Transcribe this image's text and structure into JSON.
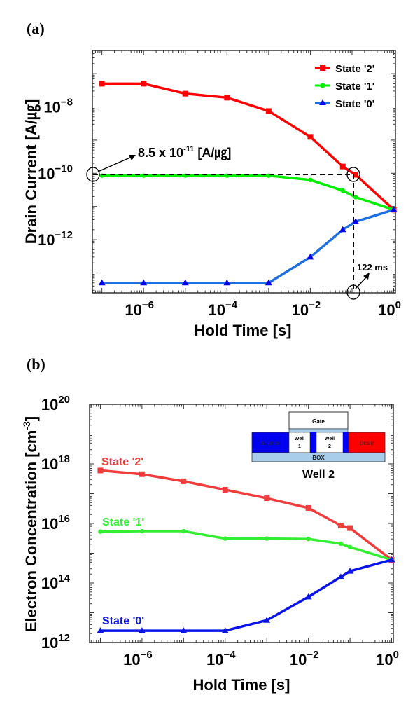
{
  "chart_data": [
    {
      "panel_label": "(a)",
      "type": "line",
      "xlabel": "Hold Time [s]",
      "ylabel": "Drain Current [A/㎍]",
      "x_scale": "log",
      "y_scale": "log",
      "xlim": [
        5.9e-08,
        1.1
      ],
      "ylim": [
        2.5e-14,
        5e-07
      ],
      "x_ticks": [
        {
          "base": "10",
          "exp": "−6",
          "value": 1e-06
        },
        {
          "base": "10",
          "exp": "−4",
          "value": 0.0001
        },
        {
          "base": "10",
          "exp": "−2",
          "value": 0.01
        },
        {
          "base": "10",
          "exp": "0",
          "value": 1
        }
      ],
      "y_ticks": [
        {
          "base": "10",
          "exp": "−8",
          "value": 1e-08
        },
        {
          "base": "10",
          "exp": "−10",
          "value": 1e-10
        },
        {
          "base": "10",
          "exp": "−12",
          "value": 1e-12
        }
      ],
      "legend": "top-right",
      "x": [
        1e-07,
        1e-06,
        1e-05,
        0.0001,
        0.001,
        0.01,
        0.06,
        0.122,
        1
      ],
      "series": [
        {
          "name": "State '2'",
          "color": "#ff0000",
          "marker": "square",
          "values": [
            5e-08,
            5e-08,
            2.5e-08,
            1.9e-08,
            7.5e-09,
            1.25e-09,
            1.6e-10,
            9e-11,
            8e-12
          ]
        },
        {
          "name": "State '1'",
          "color": "#00ee00",
          "marker": "circle",
          "values": [
            8.5e-11,
            8.5e-11,
            8.5e-11,
            8.5e-11,
            8.5e-11,
            6.3e-11,
            3e-11,
            1.9e-11,
            8e-12
          ]
        },
        {
          "name": "State '0'",
          "color": "#1e6fe0",
          "marker": "triangle",
          "values": [
            5e-14,
            5e-14,
            5e-14,
            5e-14,
            5e-14,
            3e-13,
            2e-12,
            3.5e-12,
            8e-12
          ]
        }
      ],
      "annotations": {
        "current_label_main": "8.5 x 10",
        "current_label_exp": "-11",
        "current_label_unit": " [A/㎍]",
        "current_value": 8.5e-11,
        "time_label": "122 ms",
        "time_value": 0.122
      }
    },
    {
      "panel_label": "(b)",
      "type": "line",
      "xlabel": "Hold Time [s]",
      "ylabel_main": "Electron Concentration [cm",
      "ylabel_exp": "-3",
      "ylabel_end": "]",
      "x_scale": "log",
      "y_scale": "log",
      "xlim": [
        5.5e-08,
        1.1
      ],
      "ylim": [
        1000000000000.0,
        1e+20
      ],
      "x_ticks": [
        {
          "base": "10",
          "exp": "−6",
          "value": 1e-06
        },
        {
          "base": "10",
          "exp": "−4",
          "value": 0.0001
        },
        {
          "base": "10",
          "exp": "−2",
          "value": 0.01
        },
        {
          "base": "10",
          "exp": "0",
          "value": 1
        }
      ],
      "y_ticks": [
        {
          "base": "10",
          "exp": "20",
          "value": 1e+20
        },
        {
          "base": "10",
          "exp": "18",
          "value": 1e+18
        },
        {
          "base": "10",
          "exp": "16",
          "value": 1e+16
        },
        {
          "base": "10",
          "exp": "14",
          "value": 100000000000000.0
        },
        {
          "base": "10",
          "exp": "12",
          "value": 1000000000000.0
        }
      ],
      "x": [
        1e-07,
        1e-06,
        1e-05,
        0.0001,
        0.001,
        0.01,
        0.06,
        0.1,
        1
      ],
      "series": [
        {
          "name": "State '2'",
          "color": "#f03c3c",
          "marker": "square",
          "values": [
            6e+17,
            4.5e+17,
            2.6e+17,
            1.35e+17,
            7e+16,
            3.3e+16,
            8500000000000000.0,
            7000000000000000.0,
            600000000000000.0
          ]
        },
        {
          "name": "State '1'",
          "color": "#33ee33",
          "marker": "circle",
          "values": [
            5300000000000000.0,
            5500000000000000.0,
            5500000000000000.0,
            3100000000000000.0,
            3100000000000000.0,
            3000000000000000.0,
            2100000000000000.0,
            1600000000000000.0,
            600000000000000.0
          ]
        },
        {
          "name": "State '0'",
          "color": "#0a14e6",
          "marker": "triangle",
          "values": [
            2500000000000.0,
            2500000000000.0,
            2500000000000.0,
            2500000000000.0,
            5600000000000.0,
            34000000000000.0,
            160000000000000.0,
            250000000000000.0,
            600000000000000.0
          ]
        }
      ],
      "inset": {
        "gate": "Gate",
        "source": "Source",
        "well1_a": "Well",
        "well1_b": "1",
        "well2_a": "Well",
        "well2_b": "2",
        "drain": "Drain",
        "box": "BOX",
        "caption": "Well 2",
        "source_color": "#0000ee",
        "drain_color": "#ff0000",
        "box_color": "#a8cdea"
      }
    }
  ]
}
